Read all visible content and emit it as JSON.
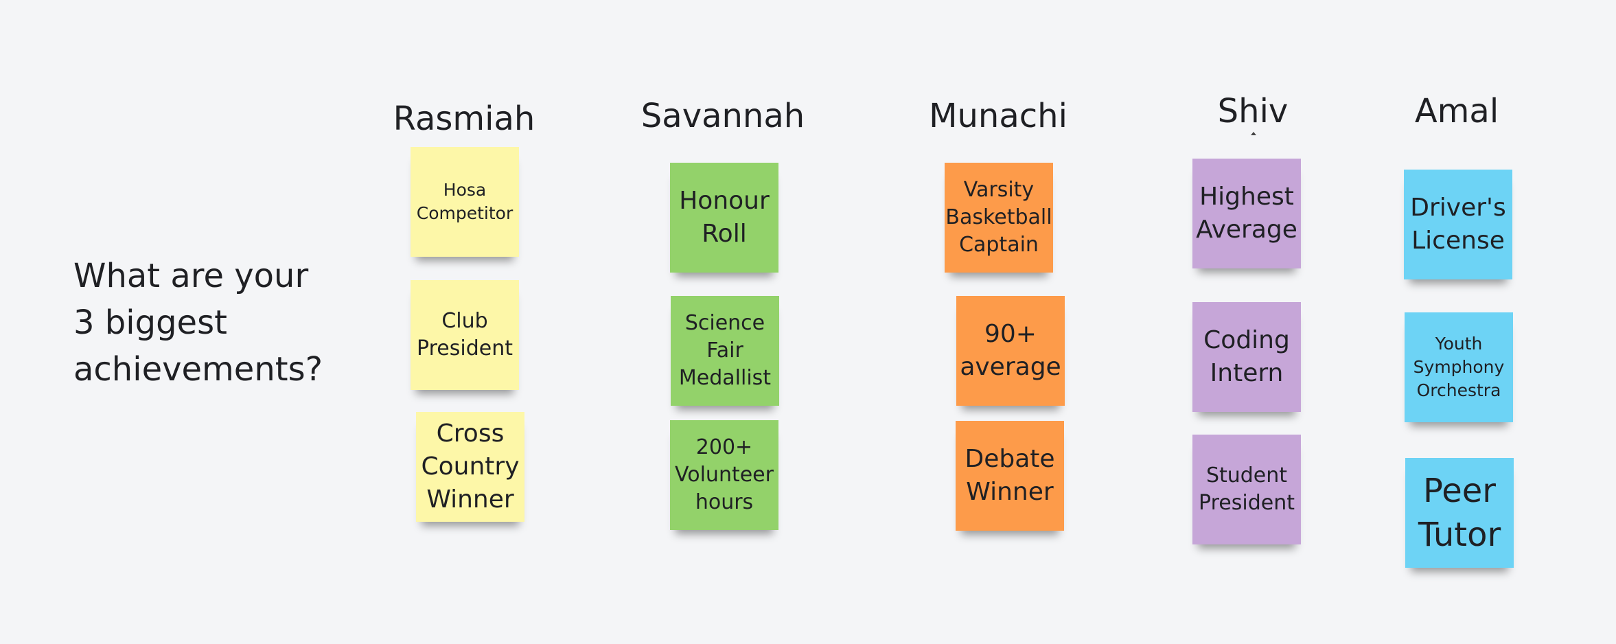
{
  "question": [
    "What are your",
    "3 biggest",
    "achievements?"
  ],
  "columns": [
    {
      "name": "Rasmiah",
      "color": "#fdf7a8",
      "notes": [
        "Hosa Competitor",
        "Club President",
        "Cross Country Winner"
      ]
    },
    {
      "name": "Savannah",
      "color": "#93d26a",
      "notes": [
        "Honour Roll",
        "Science Fair Medallist",
        "200+ Volunteer hours"
      ]
    },
    {
      "name": "Munachi",
      "color": "#fd9b4a",
      "notes": [
        "Varsity Basketball Captain",
        "90+ average",
        "Debate Winner"
      ]
    },
    {
      "name": "Shiv",
      "color": "#c6a6d8",
      "notes": [
        "Highest Average",
        "Coding Intern",
        "Student President"
      ]
    },
    {
      "name": "Amal",
      "color": "#6dd3f5",
      "notes": [
        "Driver's License",
        "Youth Symphony Orchestra",
        "Peer Tutor"
      ]
    }
  ]
}
